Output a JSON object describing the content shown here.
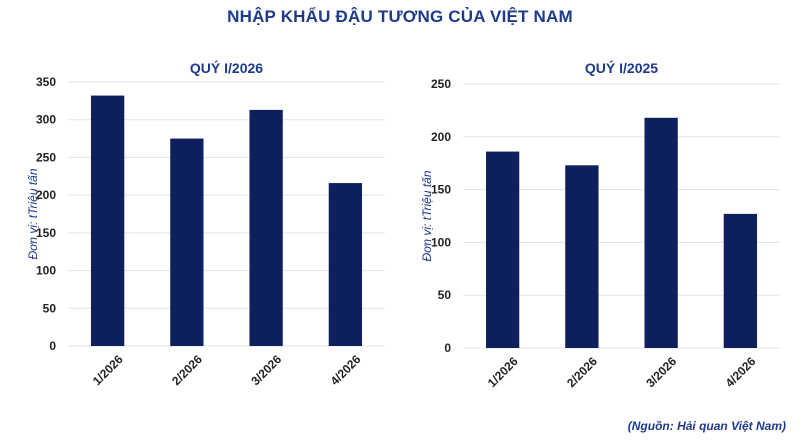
{
  "title": "NHẬP KHẨU ĐẬU TƯƠNG CỦA VIỆT NAM",
  "source": "(Nguồn: Hải quan Việt Nam)",
  "colors": {
    "bar": "#0d1f5c",
    "title": "#1e3a8a",
    "axis_text": "#222222",
    "grid": "#e3e3e3"
  },
  "chart_data": [
    {
      "type": "bar",
      "title": "QUÝ I/2026",
      "ylabel": "Đơn vị: tTriệu tấn",
      "xlabel": "",
      "categories": [
        "1/2026",
        "2/2026",
        "3/2026",
        "4/2026"
      ],
      "values": [
        332,
        275,
        313,
        216
      ],
      "ylim": [
        0,
        350
      ],
      "yticks": [
        0,
        50,
        100,
        150,
        200,
        250,
        300,
        350
      ],
      "grid": true
    },
    {
      "type": "bar",
      "title": "QUÝ I/2025",
      "ylabel": "Đơn vị: tTriệu tấn",
      "xlabel": "",
      "categories": [
        "1/2026",
        "2/2026",
        "3/2026",
        "4/2026"
      ],
      "values": [
        186,
        173,
        218,
        127
      ],
      "ylim": [
        0,
        250
      ],
      "yticks": [
        0,
        50,
        100,
        150,
        200,
        250
      ],
      "grid": true
    }
  ]
}
